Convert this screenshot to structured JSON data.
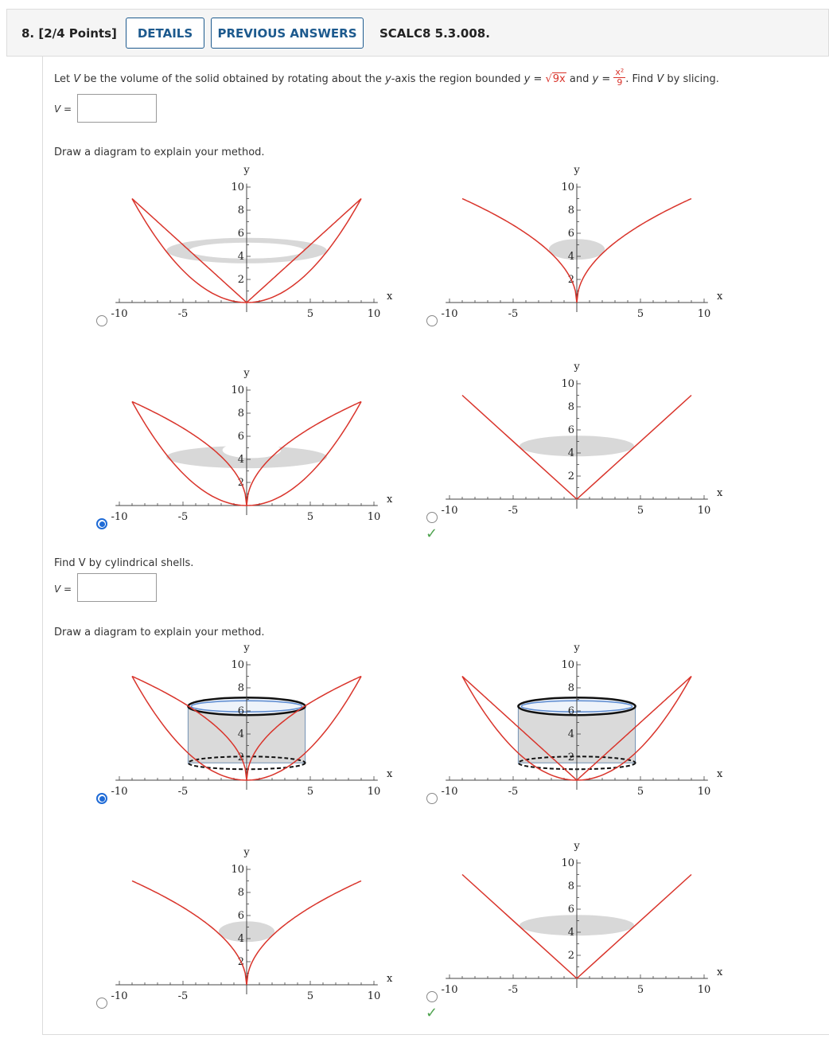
{
  "header": {
    "question_number": "8.  [2/4 Points]",
    "details_label": "DETAILS",
    "previous_answers_label": "PREVIOUS ANSWERS",
    "problem_code": "SCALC8 5.3.008."
  },
  "prompt": {
    "text_before": "Let ",
    "var_v": "V",
    "text_mid1": " be the volume of the solid obtained by rotating about the ",
    "var_axis": "y",
    "text_mid2": "-axis the region bounded ",
    "var_y1": "y",
    "eq1": " = ",
    "curve1": "9x",
    "text_and": " and ",
    "var_y2": "y",
    "eq2": " = ",
    "curve2_num": "x²",
    "curve2_den": "9",
    "text_after": ". Find ",
    "var_v2": "V",
    "text_end": " by slicing."
  },
  "part1": {
    "v_label": "V =",
    "answer_value": "",
    "diagram_instruction": "Draw a diagram to explain your method."
  },
  "part2": {
    "instruction": "Find V by cylindrical shells.",
    "v_label": "V =",
    "answer_value": "",
    "diagram_instruction": "Draw a diagram to explain your method."
  },
  "axis": {
    "x_label": "x",
    "y_label": "y",
    "x_ticks": [
      "-10",
      "-5",
      "5",
      "10"
    ],
    "y_ticks": [
      "2",
      "4",
      "6",
      "8",
      "10"
    ]
  },
  "options": [
    {
      "id": "slice-a",
      "selected": false,
      "correct": false,
      "curves": "parabola-and-lines",
      "shading": "washer-ring-y5"
    },
    {
      "id": "slice-b",
      "selected": false,
      "correct": false,
      "curves": "sqrt-curves",
      "shading": "disk-y5"
    },
    {
      "id": "slice-c",
      "selected": true,
      "correct": false,
      "curves": "parabola-and-sqrt",
      "shading": "washer-ring-y4"
    },
    {
      "id": "slice-d",
      "selected": false,
      "correct": true,
      "curves": "v-lines",
      "shading": "disk-y4"
    },
    {
      "id": "shell-a",
      "selected": true,
      "correct": false,
      "curves": "parabola-and-sqrt",
      "shading": "cylinder-shell"
    },
    {
      "id": "shell-b",
      "selected": false,
      "correct": false,
      "curves": "parabola-and-lines",
      "shading": "cylinder-shell"
    },
    {
      "id": "shell-c",
      "selected": false,
      "correct": false,
      "curves": "sqrt-curves",
      "shading": "disk-y5"
    },
    {
      "id": "shell-d",
      "selected": false,
      "correct": true,
      "curves": "v-lines",
      "shading": "disk-y4"
    }
  ],
  "colors": {
    "curve": "#d9342b",
    "shade": "#d4d4d4",
    "accent": "#1d5a8e",
    "radio": "#1f6bd6",
    "check": "#4fa34f"
  }
}
